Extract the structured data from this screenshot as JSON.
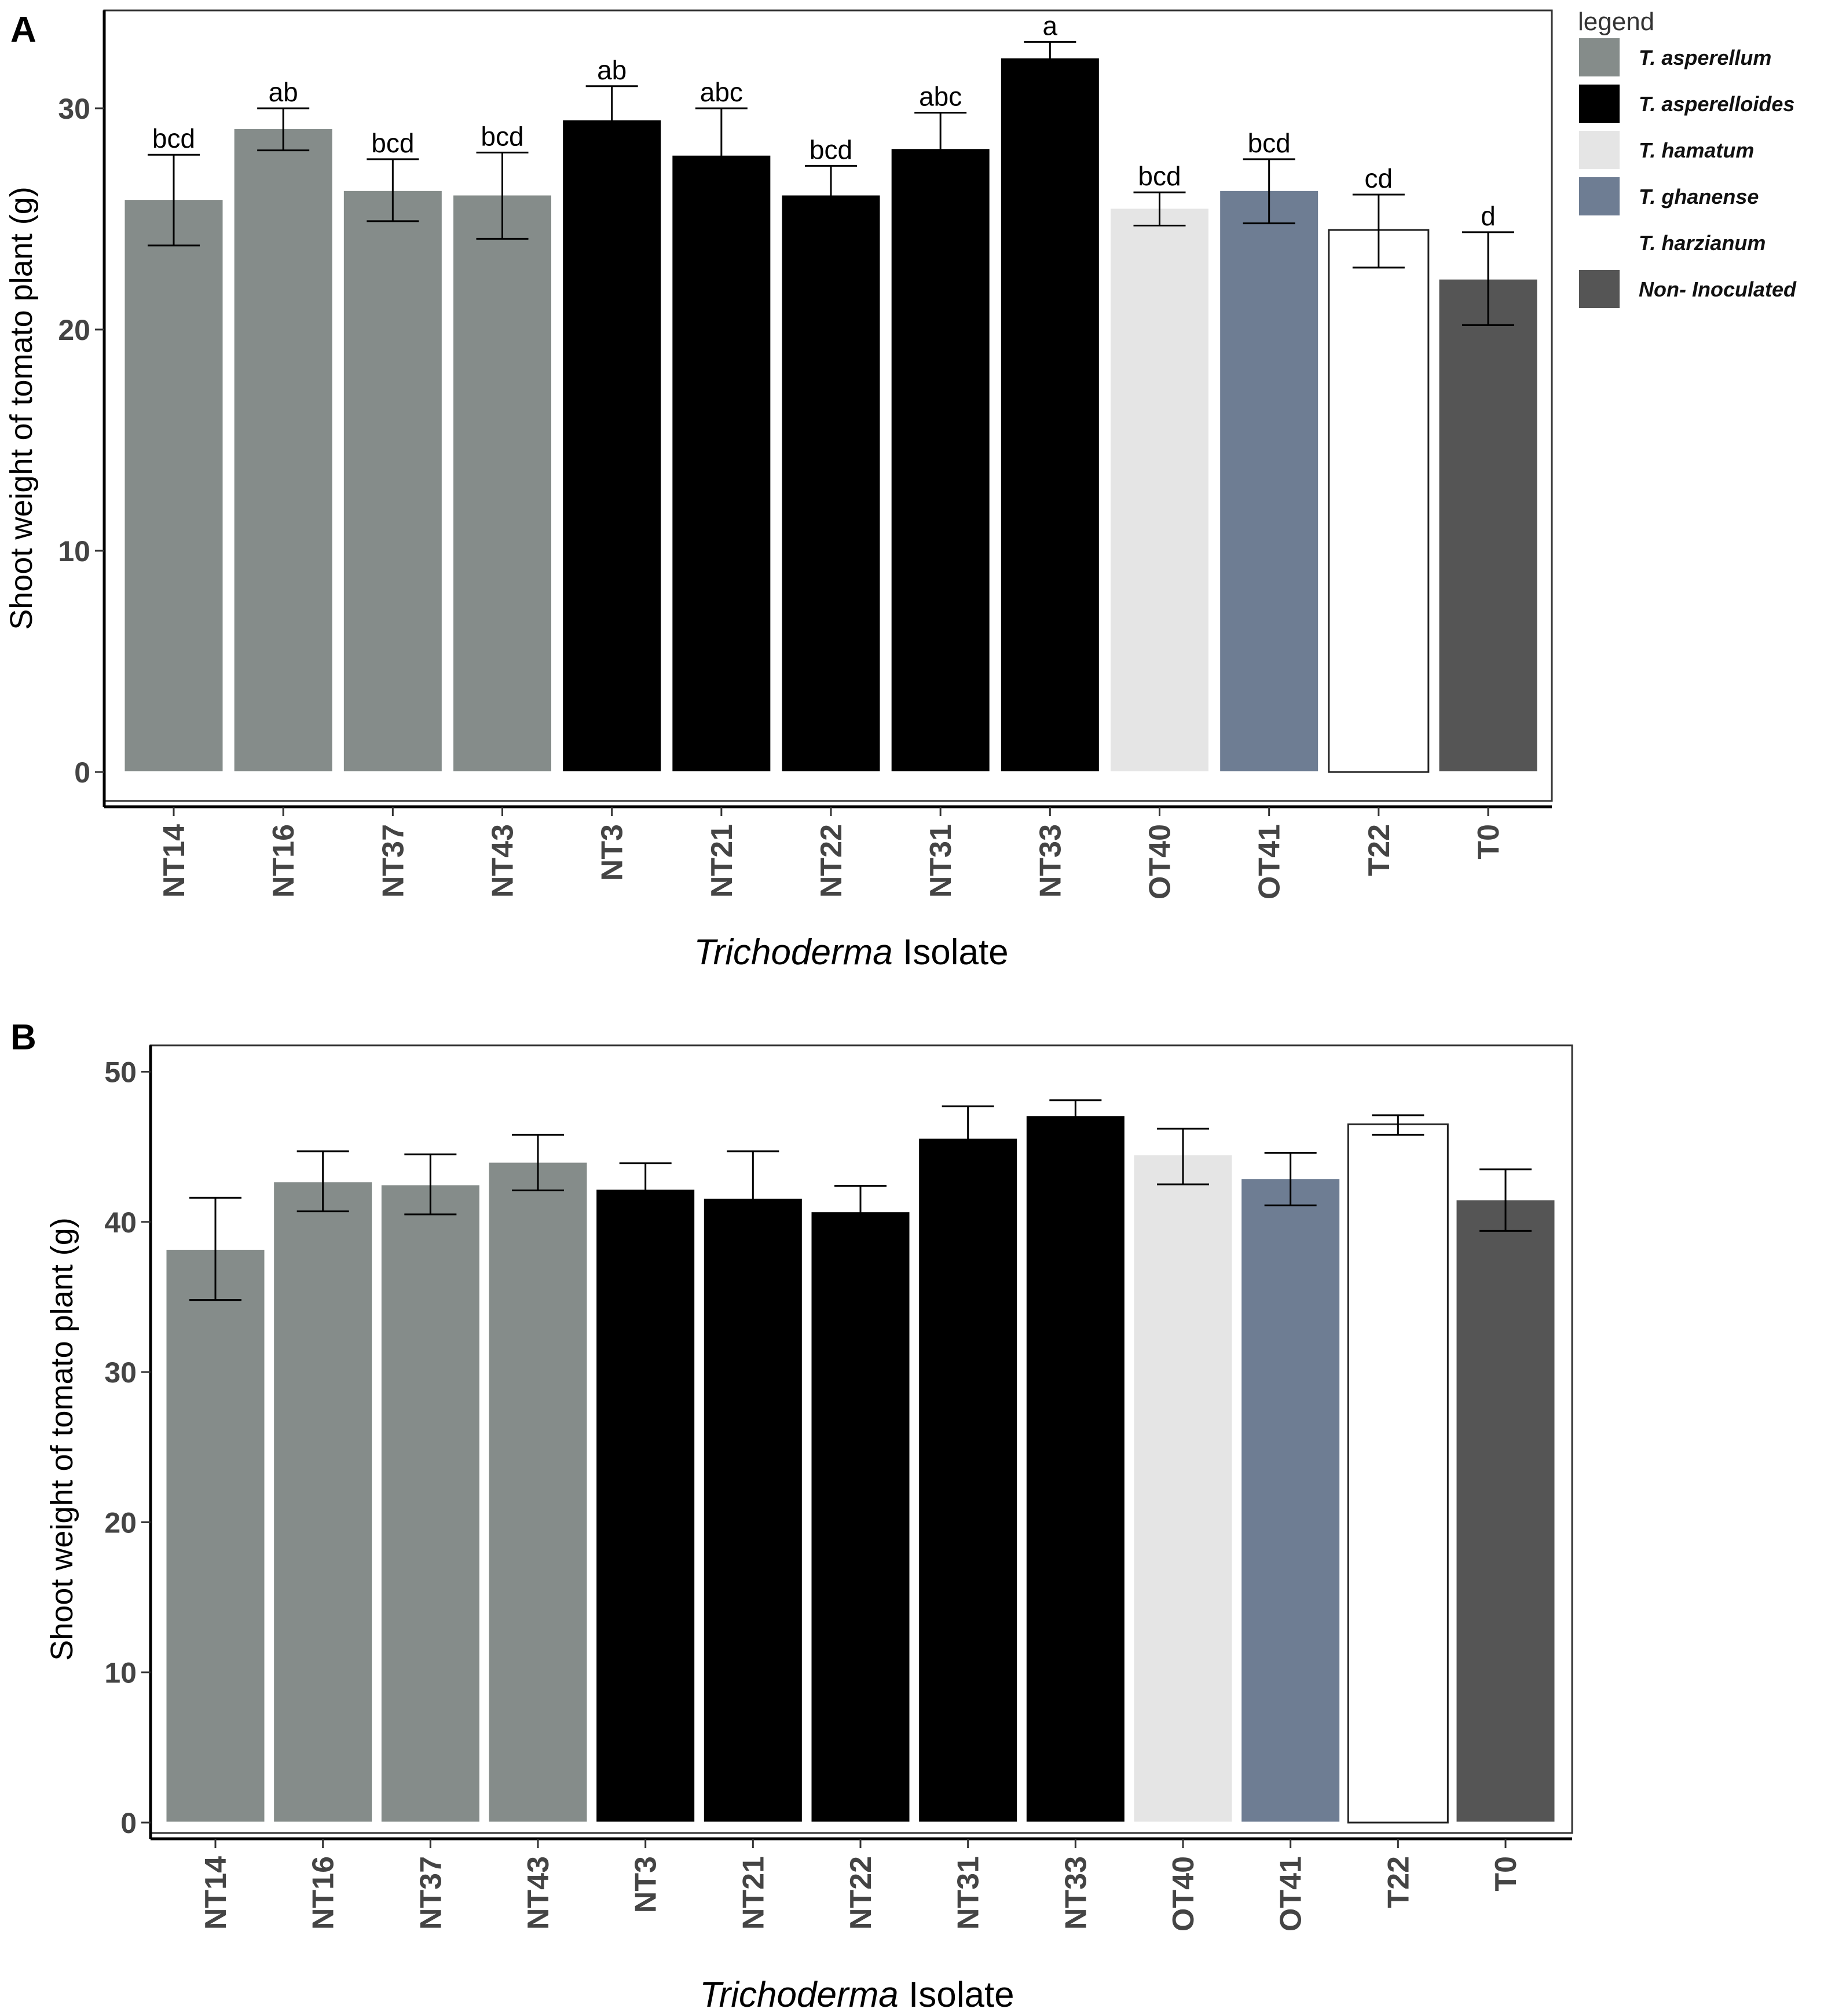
{
  "legend": {
    "title": "legend",
    "entries": [
      {
        "label": "T. asperellum",
        "color": "#858c8a"
      },
      {
        "label": "T. asperelloides",
        "color": "#000000"
      },
      {
        "label": "T. hamatum",
        "color": "#e5e5e5"
      },
      {
        "label": "T. ghanense",
        "color": "#6e7d93"
      },
      {
        "label": "T. harzianum",
        "color": "#ffffff"
      },
      {
        "label": "Non- Inoculated",
        "color": "#555555"
      }
    ]
  },
  "chart_data": [
    {
      "type": "bar",
      "panel_label": "A",
      "ylabel": "Shoot weight of tomato plant (g)",
      "xlabel_italic": "Trichoderma",
      "xlabel_rest": "Isolate",
      "ylim": [
        0,
        34.5
      ],
      "yticks": [
        0,
        10,
        20,
        30
      ],
      "categories": [
        "NT14",
        "NT16",
        "NT37",
        "NT43",
        "NT3",
        "NT21",
        "NT22",
        "NT31",
        "NT33",
        "OT40",
        "OT41",
        "T22",
        "T0"
      ],
      "groups": [
        0,
        0,
        0,
        0,
        1,
        1,
        1,
        1,
        1,
        2,
        3,
        4,
        5
      ],
      "values": [
        25.9,
        29.1,
        26.3,
        26.1,
        29.5,
        27.9,
        26.1,
        28.2,
        32.3,
        25.5,
        26.3,
        24.5,
        22.3
      ],
      "err_low": [
        23.8,
        28.1,
        24.9,
        24.1,
        28.1,
        25.8,
        24.8,
        26.6,
        31.6,
        24.7,
        24.8,
        22.8,
        20.2
      ],
      "err_high": [
        27.9,
        30.0,
        27.7,
        28.0,
        31.0,
        30.0,
        27.4,
        29.8,
        33.0,
        26.2,
        27.7,
        26.1,
        24.4
      ],
      "letters": [
        "bcd",
        "ab",
        "bcd",
        "bcd",
        "ab",
        "abc",
        "bcd",
        "abc",
        "a",
        "bcd",
        "bcd",
        "cd",
        "d"
      ]
    },
    {
      "type": "bar",
      "panel_label": "B",
      "ylabel": "Shoot weight of tomato plant (g)",
      "xlabel_italic": "Trichoderma",
      "xlabel_rest": "Isolate",
      "ylim": [
        -0.6,
        50.3
      ],
      "yticks": [
        0,
        10,
        20,
        30,
        40,
        50
      ],
      "categories": [
        "NT14",
        "NT16",
        "NT37",
        "NT43",
        "NT3",
        "NT21",
        "NT22",
        "NT31",
        "NT33",
        "OT40",
        "OT41",
        "T22",
        "T0"
      ],
      "groups": [
        0,
        0,
        0,
        0,
        1,
        1,
        1,
        1,
        1,
        2,
        3,
        4,
        5
      ],
      "values": [
        38.2,
        42.7,
        42.5,
        44.0,
        42.2,
        41.6,
        40.7,
        45.6,
        47.1,
        44.5,
        42.9,
        46.5,
        41.5
      ],
      "err_low": [
        34.8,
        40.7,
        40.5,
        42.1,
        40.3,
        38.6,
        38.8,
        43.5,
        46.0,
        42.5,
        41.1,
        45.8,
        39.4
      ],
      "err_high": [
        41.6,
        44.7,
        44.5,
        45.8,
        43.9,
        44.7,
        42.4,
        47.7,
        48.1,
        46.2,
        44.6,
        47.1,
        43.5
      ],
      "letters": []
    }
  ]
}
